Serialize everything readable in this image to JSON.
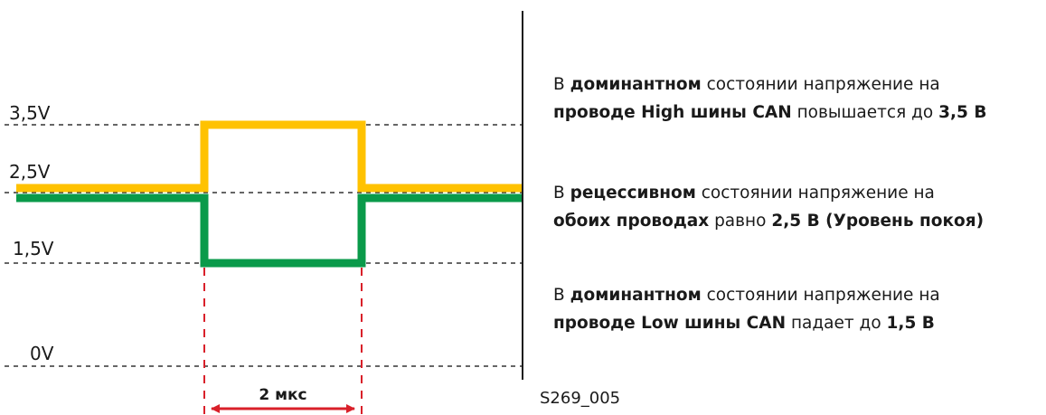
{
  "voltage_levels": [
    {
      "label": "3,5V",
      "value": 3.5
    },
    {
      "label": "2,5V",
      "value": 2.5
    },
    {
      "label": "1,5V",
      "value": 1.5
    },
    {
      "label": "0V",
      "value": 0
    }
  ],
  "signals": [
    {
      "color": "#ffc200",
      "recessive": 2.5,
      "dominant": 3.5
    },
    {
      "color": "#0a9a4a",
      "recessive": 2.5,
      "dominant": 1.5
    }
  ],
  "colors": {
    "can_high": "#ffc200",
    "can_low": "#0a9a4a",
    "marker": "#d9202a",
    "grid": "#333333"
  },
  "duration_label": "2 мкс",
  "texts": {
    "p1": {
      "l1a": "В ",
      "l1b": "доминантном",
      "l1c": " состоянии напряжение на",
      "l2a": "проводе High шины CAN",
      "l2b": " повышается до ",
      "l2c": "3,5 В"
    },
    "p2": {
      "l1a": "В ",
      "l1b": "рецессивном",
      "l1c": " состоянии напряжение на",
      "l2a": "обоих проводах",
      "l2b": " равно ",
      "l2c": "2,5 В (Уровень покоя)"
    },
    "p3": {
      "l1a": "В ",
      "l1b": "доминантном",
      "l1c": " состоянии напряжение на",
      "l2a": "проводе Low шины CAN",
      "l2b": " падает до ",
      "l2c": "1,5 В"
    }
  },
  "ref_code": "S269_005"
}
